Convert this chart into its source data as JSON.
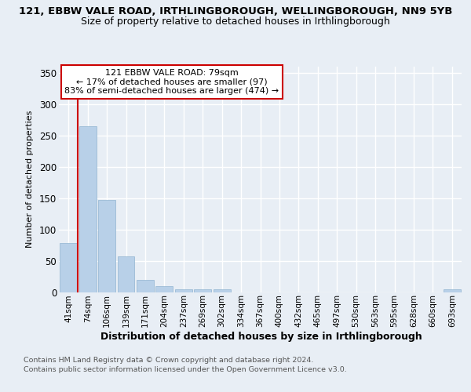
{
  "title_line1": "121, EBBW VALE ROAD, IRTHLINGBOROUGH, WELLINGBOROUGH, NN9 5YB",
  "title_line2": "Size of property relative to detached houses in Irthlingborough",
  "xlabel": "Distribution of detached houses by size in Irthlingborough",
  "ylabel": "Number of detached properties",
  "categories": [
    "41sqm",
    "74sqm",
    "106sqm",
    "139sqm",
    "171sqm",
    "204sqm",
    "237sqm",
    "269sqm",
    "302sqm",
    "334sqm",
    "367sqm",
    "400sqm",
    "432sqm",
    "465sqm",
    "497sqm",
    "530sqm",
    "563sqm",
    "595sqm",
    "628sqm",
    "660sqm",
    "693sqm"
  ],
  "values": [
    78,
    265,
    147,
    57,
    19,
    10,
    5,
    5,
    5,
    0,
    0,
    0,
    0,
    0,
    0,
    0,
    0,
    0,
    0,
    0,
    4
  ],
  "bar_color": "#b8d0e8",
  "bar_edge_color": "#90b4d0",
  "vline_index": 1,
  "vline_color": "#cc0000",
  "annotation_text": "121 EBBW VALE ROAD: 79sqm\n← 17% of detached houses are smaller (97)\n83% of semi-detached houses are larger (474) →",
  "annotation_box_facecolor": "#ffffff",
  "annotation_box_edgecolor": "#cc0000",
  "ylim": [
    0,
    360
  ],
  "yticks": [
    0,
    50,
    100,
    150,
    200,
    250,
    300,
    350
  ],
  "bg_color": "#e8eef5",
  "grid_color": "#ffffff",
  "footer_line1": "Contains HM Land Registry data © Crown copyright and database right 2024.",
  "footer_line2": "Contains public sector information licensed under the Open Government Licence v3.0."
}
